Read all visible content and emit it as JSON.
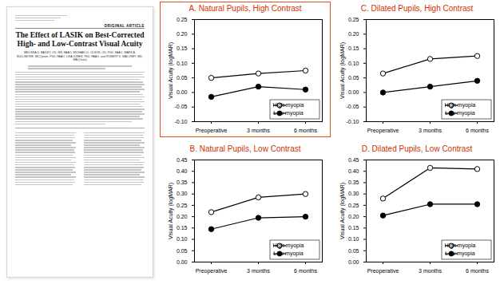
{
  "paper": {
    "section": "ORIGINAL ARTICLE",
    "title": "The Effect of LASIK on Best-Corrected High- and Low-Contrast Visual Acuity",
    "authors": "MELISSA D. BAILEY, OD, MS, FAAO, MICHAEL D. OLSON, OD, PhD, FAAO, MARK A. BULLIMORE, MCOptom, PhD, FAAO, LISA JONES, PhD, FAAO, and ROBERT K. MALONEY, MD, MA (Oxon)"
  },
  "chart_data": [
    {
      "type": "line",
      "title": "A. Natural Pupils, High Contrast",
      "categories": [
        "Preoperative",
        "3 months",
        "6 months"
      ],
      "ylabel": "Visual Acuity (logMAR)",
      "series": [
        {
          "name": "High myopia",
          "color": "#000000",
          "marker": "circle-open",
          "values": [
            0.05,
            0.065,
            0.075
          ]
        },
        {
          "name": "Low myopia",
          "color": "#000000",
          "marker": "circle",
          "values": [
            -0.015,
            0.02,
            0.01
          ]
        }
      ],
      "ylim": [
        -0.1,
        0.25
      ],
      "yticks": [
        {
          "value": -0.1,
          "label": "-0.10"
        },
        {
          "value": -0.05,
          "label": "-0.05"
        },
        {
          "value": 0,
          "label": "0.00"
        },
        {
          "value": 0.05,
          "label": "0.05"
        },
        {
          "value": 0.1,
          "label": "0.10"
        },
        {
          "value": 0.15,
          "label": "0.15"
        },
        {
          "value": 0.2,
          "label": "0.20"
        },
        {
          "value": 0.25,
          "label": "0.25"
        }
      ],
      "legend": "lower right",
      "grid": false
    },
    {
      "type": "line",
      "title": "B. Natural Pupils, Low Contrast",
      "categories": [
        "Preoperative",
        "3 months",
        "6 months"
      ],
      "ylabel": "Visual Acuity (logMAR)",
      "series": [
        {
          "name": "High myopia",
          "color": "#000000",
          "marker": "circle-open",
          "values": [
            0.22,
            0.285,
            0.3
          ]
        },
        {
          "name": "Low myopia",
          "color": "#000000",
          "marker": "circle",
          "values": [
            0.145,
            0.195,
            0.2
          ]
        }
      ],
      "ylim": [
        0,
        0.45
      ],
      "yticks": [
        {
          "value": 0,
          "label": "0.00"
        },
        {
          "value": 0.05,
          "label": "0.05"
        },
        {
          "value": 0.1,
          "label": "0.10"
        },
        {
          "value": 0.15,
          "label": "0.15"
        },
        {
          "value": 0.2,
          "label": "0.20"
        },
        {
          "value": 0.25,
          "label": "0.25"
        },
        {
          "value": 0.3,
          "label": "0.30"
        },
        {
          "value": 0.35,
          "label": "0.35"
        },
        {
          "value": 0.4,
          "label": "0.40"
        },
        {
          "value": 0.45,
          "label": "0.45"
        }
      ],
      "legend": "lower right",
      "grid": false
    },
    {
      "type": "line",
      "title": "C. Dilated Pupils, High Contrast",
      "categories": [
        "Preoperative",
        "3 months",
        "6 months"
      ],
      "ylabel": "Visual Acuity (logMAR)",
      "series": [
        {
          "name": "High myopia",
          "color": "#000000",
          "marker": "circle-open",
          "values": [
            0.065,
            0.115,
            0.125
          ]
        },
        {
          "name": "Low myopia",
          "color": "#000000",
          "marker": "circle",
          "values": [
            0,
            0.02,
            0.04
          ]
        }
      ],
      "ylim": [
        -0.1,
        0.25
      ],
      "yticks": [
        {
          "value": -0.1,
          "label": "-0.10"
        },
        {
          "value": -0.05,
          "label": "-0.05"
        },
        {
          "value": 0,
          "label": "0.00"
        },
        {
          "value": 0.05,
          "label": "0.05"
        },
        {
          "value": 0.1,
          "label": "0.10"
        },
        {
          "value": 0.15,
          "label": "0.15"
        },
        {
          "value": 0.2,
          "label": "0.20"
        },
        {
          "value": 0.25,
          "label": "0.25"
        }
      ],
      "legend": "lower right",
      "grid": false
    },
    {
      "type": "line",
      "title": "D. Dilated Pupils, Low Contrast",
      "categories": [
        "Preoperative",
        "3 months",
        "6 months"
      ],
      "ylabel": "Visual Acuity (logMAR)",
      "series": [
        {
          "name": "High myopia",
          "color": "#000000",
          "marker": "circle-open",
          "values": [
            0.28,
            0.415,
            0.41
          ]
        },
        {
          "name": "Low myopia",
          "color": "#000000",
          "marker": "circle",
          "values": [
            0.205,
            0.255,
            0.255
          ]
        }
      ],
      "ylim": [
        0,
        0.45
      ],
      "yticks": [
        {
          "value": 0,
          "label": "0.00"
        },
        {
          "value": 0.05,
          "label": "0.05"
        },
        {
          "value": 0.1,
          "label": "0.10"
        },
        {
          "value": 0.15,
          "label": "0.15"
        },
        {
          "value": 0.2,
          "label": "0.20"
        },
        {
          "value": 0.25,
          "label": "0.25"
        },
        {
          "value": 0.3,
          "label": "0.30"
        },
        {
          "value": 0.35,
          "label": "0.35"
        },
        {
          "value": 0.4,
          "label": "0.40"
        },
        {
          "value": 0.45,
          "label": "0.45"
        }
      ],
      "legend": "lower right",
      "grid": false
    }
  ]
}
